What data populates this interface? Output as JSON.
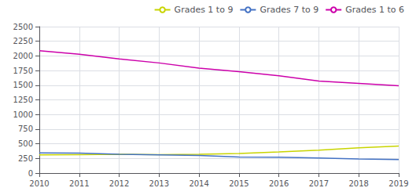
{
  "chart_data": {
    "type": "line",
    "x": [
      2010,
      2011,
      2012,
      2013,
      2014,
      2015,
      2016,
      2017,
      2018,
      2019
    ],
    "series": [
      {
        "name": "Grades 1 to 9",
        "color": "#c8d400",
        "values": [
          310,
          315,
          320,
          315,
          320,
          335,
          360,
          390,
          430,
          460
        ]
      },
      {
        "name": "Grades 7 to 9",
        "color": "#4472c4",
        "values": [
          345,
          340,
          320,
          310,
          300,
          275,
          270,
          258,
          240,
          232
        ]
      },
      {
        "name": "Grades 1 to 6",
        "color": "#cc00aa",
        "values": [
          2090,
          2030,
          1950,
          1880,
          1790,
          1730,
          1660,
          1570,
          1530,
          1490
        ]
      }
    ],
    "xlim": [
      2010,
      2019
    ],
    "xticks": [
      2010,
      2011,
      2012,
      2013,
      2014,
      2015,
      2016,
      2017,
      2018,
      2019
    ],
    "ylim": [
      0,
      2500
    ],
    "yticks": [
      0,
      250,
      500,
      750,
      1000,
      1250,
      1500,
      1750,
      2000,
      2250,
      2500
    ],
    "grid": true,
    "legend": "upper right"
  }
}
